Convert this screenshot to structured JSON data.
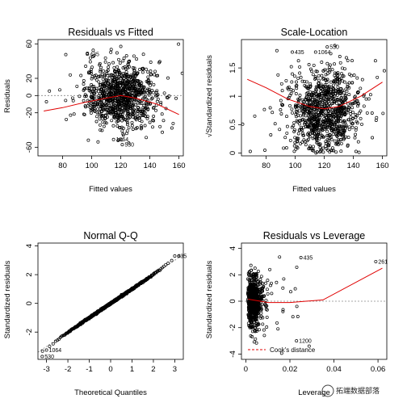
{
  "watermark": {
    "text": "拓端数据部落"
  },
  "chart_data": [
    {
      "id": "resid_fitted",
      "type": "scatter",
      "title": "Residuals vs Fitted",
      "xlabel": "Fitted values",
      "ylabel": "Residuals",
      "xlim": [
        63,
        163
      ],
      "ylim": [
        -70,
        65
      ],
      "xticks": [
        80,
        100,
        120,
        140,
        160
      ],
      "yticks": [
        -60,
        -20,
        0,
        20,
        60
      ],
      "reference": {
        "type": "hline",
        "value": 0
      },
      "smooth": {
        "x": [
          67,
          80,
          95,
          110,
          120,
          130,
          145,
          160
        ],
        "y": [
          -18,
          -14,
          -8,
          -3,
          0,
          -3,
          -10,
          -22
        ]
      },
      "cloud": {
        "center": [
          120,
          0
        ],
        "spread": [
          12,
          18
        ],
        "count": 900,
        "outliers": 60
      },
      "labels": [
        {
          "text": "435",
          "x": 97,
          "y": 48
        },
        {
          "text": "1064",
          "x": 115,
          "y": -51
        },
        {
          "text": "530",
          "x": 121,
          "y": -57
        }
      ]
    },
    {
      "id": "scale_location",
      "type": "scatter",
      "title": "Scale-Location",
      "xlabel": "Fitted values",
      "ylabel": "√Standardized residuals",
      "xlim": [
        63,
        163
      ],
      "ylim": [
        -0.05,
        2.0
      ],
      "xticks": [
        80,
        100,
        120,
        140,
        160
      ],
      "yticks": [
        0.0,
        0.5,
        1.0,
        1.5
      ],
      "smooth": {
        "x": [
          67,
          80,
          95,
          110,
          120,
          130,
          145,
          160
        ],
        "y": [
          1.3,
          1.15,
          0.95,
          0.82,
          0.78,
          0.82,
          1.0,
          1.25
        ]
      },
      "cloud": {
        "center": [
          120,
          0.75
        ],
        "spread": [
          12,
          0.35
        ],
        "count": 900,
        "outliers": 60
      },
      "labels": [
        {
          "text": "530",
          "x": 122,
          "y": 1.87
        },
        {
          "text": "435",
          "x": 98,
          "y": 1.78
        },
        {
          "text": "1064",
          "x": 114,
          "y": 1.78
        }
      ]
    },
    {
      "id": "normal_qq",
      "type": "scatter",
      "title": "Normal Q-Q",
      "xlabel": "Theoretical Quantiles",
      "ylabel": "Standardized residuals",
      "xlim": [
        -3.4,
        3.4
      ],
      "ylim": [
        -3.9,
        4.2
      ],
      "xticks": [
        -3,
        -2,
        -1,
        0,
        1,
        2,
        3
      ],
      "yticks": [
        -2,
        0,
        2,
        4
      ],
      "reference": {
        "type": "abline",
        "intercept": 0,
        "slope": 1
      },
      "qq": {
        "n": 700,
        "slope": 1.0,
        "lower_tail_shift": -0.1,
        "upper_tail_shift": 0.12
      },
      "labels": [
        {
          "text": "435",
          "x": 3.0,
          "y": 3.3
        },
        {
          "text": "1064",
          "x": -3.0,
          "y": -3.25
        },
        {
          "text": "530",
          "x": -3.2,
          "y": -3.7
        }
      ]
    },
    {
      "id": "resid_leverage",
      "type": "scatter",
      "title": "Residuals vs Leverage",
      "xlabel": "Leverage",
      "ylabel": "Standardized residuals",
      "xlim": [
        -0.002,
        0.064
      ],
      "ylim": [
        -4.4,
        4.4
      ],
      "xticks": [
        0.0,
        0.02,
        0.04,
        0.06
      ],
      "yticks": [
        -4,
        -2,
        0,
        2,
        4
      ],
      "reference": {
        "type": "hline",
        "value": 0
      },
      "smooth": {
        "x": [
          0.001,
          0.005,
          0.01,
          0.02,
          0.035,
          0.062
        ],
        "y": [
          0.15,
          0.05,
          -0.1,
          -0.1,
          0.1,
          2.5
        ]
      },
      "cloud": {
        "center": [
          0.004,
          0
        ],
        "spread": [
          0.003,
          1.0
        ],
        "count": 700,
        "outliers": 40
      },
      "labels": [
        {
          "text": "435",
          "x": 0.025,
          "y": 3.3
        },
        {
          "text": "261",
          "x": 0.059,
          "y": 3.0
        },
        {
          "text": "1200",
          "x": 0.023,
          "y": -3.0
        }
      ],
      "legend": {
        "label": "Cook's distance",
        "position": "bottom-left"
      }
    }
  ]
}
